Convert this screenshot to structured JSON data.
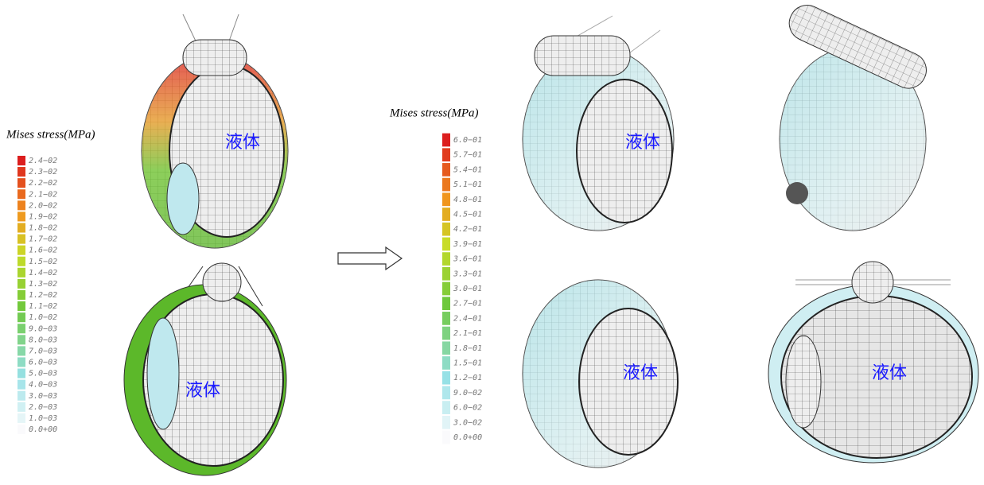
{
  "legends": [
    {
      "title": "Mises stress(MPa)",
      "labels": [
        "2.4−02",
        "2.3−02",
        "2.2−02",
        "2.1−02",
        "2.0−02",
        "1.9−02",
        "1.8−02",
        "1.7−02",
        "1.6−02",
        "1.5−02",
        "1.4−02",
        "1.3−02",
        "1.2−02",
        "1.1−02",
        "1.0−02",
        "9.0−03",
        "8.0−03",
        "7.0−03",
        "6.0−03",
        "5.0−03",
        "4.0−03",
        "3.0−03",
        "2.0−03",
        "1.0−03",
        "0.0+00"
      ]
    },
    {
      "title": "Mises stress(MPa)",
      "labels": [
        "6.0−01",
        "5.7−01",
        "5.4−01",
        "5.1−01",
        "4.8−01",
        "4.5−01",
        "4.2−01",
        "3.9−01",
        "3.6−01",
        "3.3−01",
        "3.0−01",
        "2.7−01",
        "2.4−01",
        "2.1−01",
        "1.8−01",
        "1.5−01",
        "1.2−01",
        "9.0−02",
        "6.0−02",
        "3.0−02",
        "0.0+00"
      ]
    }
  ],
  "panels": [
    {
      "label": "液体"
    },
    {
      "label": "液体"
    },
    {
      "label": "液体"
    },
    {
      "label": "液体"
    },
    {
      "label": "液体"
    }
  ]
}
